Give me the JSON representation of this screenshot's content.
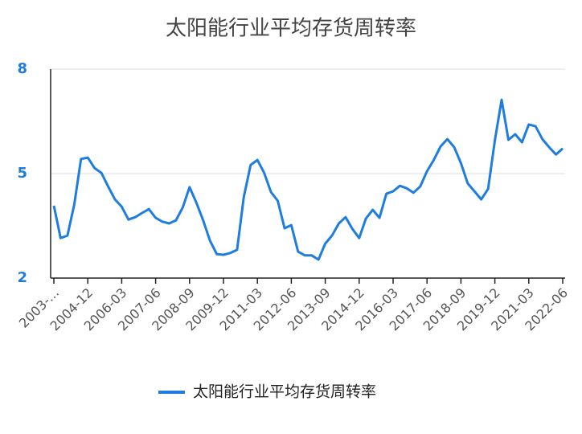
{
  "chart_data": {
    "type": "line",
    "title": "太阳能行业平均存货周转率",
    "categories": [
      "2003-...",
      null,
      null,
      null,
      null,
      "2004-12",
      null,
      null,
      null,
      null,
      "2006-03",
      null,
      null,
      null,
      null,
      "2007-06",
      null,
      null,
      null,
      null,
      "2008-09",
      null,
      null,
      null,
      null,
      "2009-12",
      null,
      null,
      null,
      null,
      "2011-03",
      null,
      null,
      null,
      null,
      "2012-06",
      null,
      null,
      null,
      null,
      "2013-09",
      null,
      null,
      null,
      null,
      "2014-12",
      null,
      null,
      null,
      null,
      "2016-03",
      null,
      null,
      null,
      null,
      "2017-06",
      null,
      null,
      null,
      null,
      "2018-09",
      null,
      null,
      null,
      null,
      "2019-12",
      null,
      null,
      null,
      null,
      "2021-03",
      null,
      null,
      null,
      null,
      "2022-06"
    ],
    "series": [
      {
        "name": "太阳能行业平均存货周转率",
        "color": "#1f7de0",
        "values": [
          4.08,
          3.15,
          3.22,
          4.1,
          5.42,
          5.46,
          5.16,
          5.02,
          4.63,
          4.26,
          4.05,
          3.68,
          3.75,
          3.87,
          3.98,
          3.73,
          3.62,
          3.57,
          3.66,
          4.03,
          4.61,
          4.17,
          3.66,
          3.08,
          2.69,
          2.67,
          2.72,
          2.81,
          4.33,
          5.25,
          5.39,
          5.02,
          4.47,
          4.22,
          3.43,
          3.52,
          2.76,
          2.65,
          2.65,
          2.53,
          2.99,
          3.22,
          3.57,
          3.75,
          3.41,
          3.15,
          3.71,
          3.96,
          3.73,
          4.42,
          4.49,
          4.65,
          4.58,
          4.45,
          4.63,
          5.07,
          5.39,
          5.78,
          5.99,
          5.76,
          5.3,
          4.72,
          4.49,
          4.26,
          4.56,
          5.95,
          7.12,
          5.97,
          6.13,
          5.9,
          6.41,
          6.36,
          5.99,
          5.76,
          5.55,
          5.72
        ]
      }
    ],
    "ylim": [
      2,
      8
    ],
    "yticks": [
      2,
      5,
      8
    ],
    "grid": true,
    "legend": "bottom"
  }
}
